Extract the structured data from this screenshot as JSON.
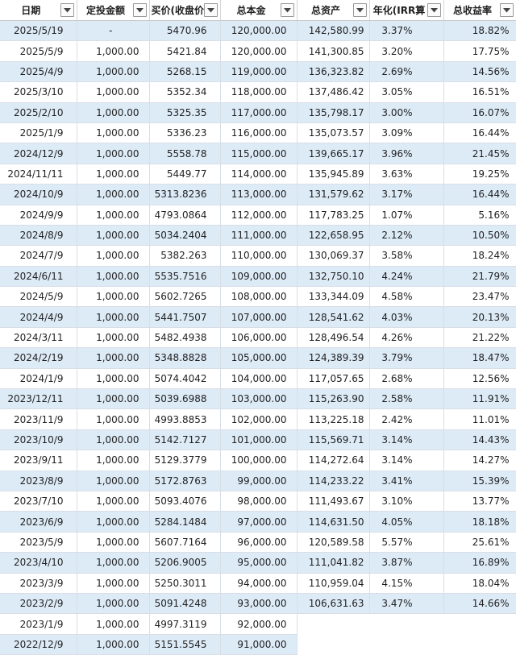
{
  "headers": {
    "date": "日期",
    "amount": "定投金额",
    "buy_price": "买价(收盘价",
    "principal": "总本金",
    "total_assets": "总资产",
    "irr": "年化(IRR算",
    "total_return": "总收益率"
  },
  "rows": [
    {
      "date": "2025/5/19",
      "amount": "-",
      "buy_price": "5470.96",
      "principal": "120,000.00",
      "total_assets": "142,580.99",
      "irr": "3.37%",
      "total_return": "18.82%"
    },
    {
      "date": "2025/5/9",
      "amount": "1,000.00",
      "buy_price": "5421.84",
      "principal": "120,000.00",
      "total_assets": "141,300.85",
      "irr": "3.20%",
      "total_return": "17.75%"
    },
    {
      "date": "2025/4/9",
      "amount": "1,000.00",
      "buy_price": "5268.15",
      "principal": "119,000.00",
      "total_assets": "136,323.82",
      "irr": "2.69%",
      "total_return": "14.56%"
    },
    {
      "date": "2025/3/10",
      "amount": "1,000.00",
      "buy_price": "5352.34",
      "principal": "118,000.00",
      "total_assets": "137,486.42",
      "irr": "3.05%",
      "total_return": "16.51%"
    },
    {
      "date": "2025/2/10",
      "amount": "1,000.00",
      "buy_price": "5325.35",
      "principal": "117,000.00",
      "total_assets": "135,798.17",
      "irr": "3.00%",
      "total_return": "16.07%"
    },
    {
      "date": "2025/1/9",
      "amount": "1,000.00",
      "buy_price": "5336.23",
      "principal": "116,000.00",
      "total_assets": "135,073.57",
      "irr": "3.09%",
      "total_return": "16.44%"
    },
    {
      "date": "2024/12/9",
      "amount": "1,000.00",
      "buy_price": "5558.78",
      "principal": "115,000.00",
      "total_assets": "139,665.17",
      "irr": "3.96%",
      "total_return": "21.45%"
    },
    {
      "date": "2024/11/11",
      "amount": "1,000.00",
      "buy_price": "5449.77",
      "principal": "114,000.00",
      "total_assets": "135,945.89",
      "irr": "3.63%",
      "total_return": "19.25%"
    },
    {
      "date": "2024/10/9",
      "amount": "1,000.00",
      "buy_price": "5313.8236",
      "principal": "113,000.00",
      "total_assets": "131,579.62",
      "irr": "3.17%",
      "total_return": "16.44%"
    },
    {
      "date": "2024/9/9",
      "amount": "1,000.00",
      "buy_price": "4793.0864",
      "principal": "112,000.00",
      "total_assets": "117,783.25",
      "irr": "1.07%",
      "total_return": "5.16%"
    },
    {
      "date": "2024/8/9",
      "amount": "1,000.00",
      "buy_price": "5034.2404",
      "principal": "111,000.00",
      "total_assets": "122,658.95",
      "irr": "2.12%",
      "total_return": "10.50%"
    },
    {
      "date": "2024/7/9",
      "amount": "1,000.00",
      "buy_price": "5382.263",
      "principal": "110,000.00",
      "total_assets": "130,069.37",
      "irr": "3.58%",
      "total_return": "18.24%"
    },
    {
      "date": "2024/6/11",
      "amount": "1,000.00",
      "buy_price": "5535.7516",
      "principal": "109,000.00",
      "total_assets": "132,750.10",
      "irr": "4.24%",
      "total_return": "21.79%"
    },
    {
      "date": "2024/5/9",
      "amount": "1,000.00",
      "buy_price": "5602.7265",
      "principal": "108,000.00",
      "total_assets": "133,344.09",
      "irr": "4.58%",
      "total_return": "23.47%"
    },
    {
      "date": "2024/4/9",
      "amount": "1,000.00",
      "buy_price": "5441.7507",
      "principal": "107,000.00",
      "total_assets": "128,541.62",
      "irr": "4.03%",
      "total_return": "20.13%"
    },
    {
      "date": "2024/3/11",
      "amount": "1,000.00",
      "buy_price": "5482.4938",
      "principal": "106,000.00",
      "total_assets": "128,496.54",
      "irr": "4.26%",
      "total_return": "21.22%"
    },
    {
      "date": "2024/2/19",
      "amount": "1,000.00",
      "buy_price": "5348.8828",
      "principal": "105,000.00",
      "total_assets": "124,389.39",
      "irr": "3.79%",
      "total_return": "18.47%"
    },
    {
      "date": "2024/1/9",
      "amount": "1,000.00",
      "buy_price": "5074.4042",
      "principal": "104,000.00",
      "total_assets": "117,057.65",
      "irr": "2.68%",
      "total_return": "12.56%"
    },
    {
      "date": "2023/12/11",
      "amount": "1,000.00",
      "buy_price": "5039.6988",
      "principal": "103,000.00",
      "total_assets": "115,263.90",
      "irr": "2.58%",
      "total_return": "11.91%"
    },
    {
      "date": "2023/11/9",
      "amount": "1,000.00",
      "buy_price": "4993.8853",
      "principal": "102,000.00",
      "total_assets": "113,225.18",
      "irr": "2.42%",
      "total_return": "11.01%"
    },
    {
      "date": "2023/10/9",
      "amount": "1,000.00",
      "buy_price": "5142.7127",
      "principal": "101,000.00",
      "total_assets": "115,569.71",
      "irr": "3.14%",
      "total_return": "14.43%"
    },
    {
      "date": "2023/9/11",
      "amount": "1,000.00",
      "buy_price": "5129.3779",
      "principal": "100,000.00",
      "total_assets": "114,272.64",
      "irr": "3.14%",
      "total_return": "14.27%"
    },
    {
      "date": "2023/8/9",
      "amount": "1,000.00",
      "buy_price": "5172.8763",
      "principal": "99,000.00",
      "total_assets": "114,233.22",
      "irr": "3.41%",
      "total_return": "15.39%"
    },
    {
      "date": "2023/7/10",
      "amount": "1,000.00",
      "buy_price": "5093.4076",
      "principal": "98,000.00",
      "total_assets": "111,493.67",
      "irr": "3.10%",
      "total_return": "13.77%"
    },
    {
      "date": "2023/6/9",
      "amount": "1,000.00",
      "buy_price": "5284.1484",
      "principal": "97,000.00",
      "total_assets": "114,631.50",
      "irr": "4.05%",
      "total_return": "18.18%"
    },
    {
      "date": "2023/5/9",
      "amount": "1,000.00",
      "buy_price": "5607.7164",
      "principal": "96,000.00",
      "total_assets": "120,589.58",
      "irr": "5.57%",
      "total_return": "25.61%"
    },
    {
      "date": "2023/4/10",
      "amount": "1,000.00",
      "buy_price": "5206.9005",
      "principal": "95,000.00",
      "total_assets": "111,041.82",
      "irr": "3.87%",
      "total_return": "16.89%"
    },
    {
      "date": "2023/3/9",
      "amount": "1,000.00",
      "buy_price": "5250.3011",
      "principal": "94,000.00",
      "total_assets": "110,959.04",
      "irr": "4.15%",
      "total_return": "18.04%"
    },
    {
      "date": "2023/2/9",
      "amount": "1,000.00",
      "buy_price": "5091.4248",
      "principal": "93,000.00",
      "total_assets": "106,631.63",
      "irr": "3.47%",
      "total_return": "14.66%"
    },
    {
      "date": "2023/1/9",
      "amount": "1,000.00",
      "buy_price": "4997.3119",
      "principal": "92,000.00",
      "total_assets": "",
      "irr": "",
      "total_return": ""
    },
    {
      "date": "2022/12/9",
      "amount": "1,000.00",
      "buy_price": "5151.5545",
      "principal": "91,000.00",
      "total_assets": "",
      "irr": "",
      "total_return": ""
    }
  ]
}
